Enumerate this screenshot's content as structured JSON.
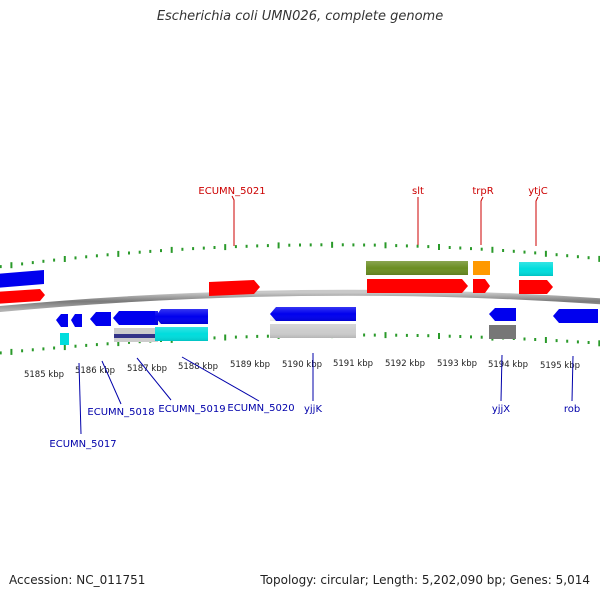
{
  "title": "Escherichia coli UMN026, complete genome",
  "footer": {
    "accession": "Accession: NC_011751",
    "summary": "Topology: circular; Length: 5,202,090 bp; Genes: 5,014"
  },
  "colors": {
    "backbone": "#808080",
    "tick": "#2a9a2a",
    "forward_label": "#cc0000",
    "reverse_label": "#0000aa"
  },
  "kbp_ticks": [
    "5185 kbp",
    "5186 kbp",
    "5187 kbp",
    "5188 kbp",
    "5189 kbp",
    "5190 kbp",
    "5191 kbp",
    "5192 kbp",
    "5193 kbp",
    "5194 kbp",
    "5195 kbp"
  ],
  "forward_labels": [
    "ECUMN_5021",
    "slt",
    "trpR",
    "ytjC"
  ],
  "reverse_labels": [
    "ECUMN_5017",
    "ECUMN_5018",
    "ECUMN_5019",
    "ECUMN_5020",
    "yjjK",
    "yjjX",
    "rob"
  ],
  "feature_colors": {
    "red": "#ff0000",
    "blue": "#0000ee",
    "cyan": "#00dddd",
    "olive": "#6b8e23",
    "orange": "#ff9900",
    "silver": "#cccccc",
    "gray": "#777777",
    "navy": "#333388"
  }
}
